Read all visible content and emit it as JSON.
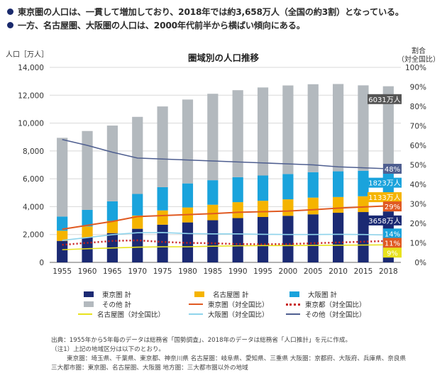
{
  "bullets": [
    "東京圏の人口は、一貫して増加しており、2018年では約3,658万人（全国の約3割）となっている。",
    "一方、名古屋圏、大阪圏の人口は、2000年代前半から横ばい傾向にある。"
  ],
  "colors": {
    "tokyo": "#1b2a73",
    "nagoya": "#f5b400",
    "osaka": "#1aa3dc",
    "other": "#b3b9be",
    "tokyo_ratio": "#e05a22",
    "tokyo_metro_ratio": "#c8201e",
    "nagoya_ratio": "#e8e21c",
    "osaka_ratio": "#8fd4ec",
    "other_ratio": "#4f5f90"
  },
  "chart_data": {
    "type": "bar",
    "title": "圏域別の人口推移",
    "ylabel_left": "人口［万人］",
    "ylabel_right_line1": "割合",
    "ylabel_right_line2": "（対全国比）",
    "ylim_left": [
      0,
      14000
    ],
    "ylim_right": [
      0,
      100
    ],
    "yticks_left": [
      "0",
      "2,000",
      "4,000",
      "6,000",
      "8,000",
      "10,000",
      "12,000",
      "14,000"
    ],
    "yticks_right": [
      "0%",
      "10%",
      "20%",
      "30%",
      "40%",
      "50%",
      "60%",
      "70%",
      "80%",
      "90%",
      "100%"
    ],
    "categories": [
      "1955",
      "1960",
      "1965",
      "1970",
      "1975",
      "1980",
      "1985",
      "1990",
      "1995",
      "2000",
      "2005",
      "2010",
      "2015",
      "2018"
    ],
    "stacked_series": [
      {
        "name": "東京圏 計",
        "values": [
          1542,
          1786,
          2102,
          2411,
          2704,
          2870,
          3027,
          3180,
          3258,
          3342,
          3448,
          3562,
          3613,
          3658
        ]
      },
      {
        "name": "名古屋圏 計",
        "values": [
          731,
          794,
          876,
          952,
          1025,
          1071,
          1112,
          1143,
          1163,
          1184,
          1202,
          1130,
          1132,
          1133
        ]
      },
      {
        "name": "大阪圏 計",
        "values": [
          1016,
          1190,
          1404,
          1551,
          1670,
          1728,
          1760,
          1797,
          1815,
          1819,
          1826,
          1846,
          1832,
          1823
        ]
      },
      {
        "name": "その他 計",
        "values": [
          5653,
          5661,
          5440,
          5533,
          5795,
          6022,
          6205,
          6241,
          6321,
          6357,
          6314,
          6268,
          6132,
          6031
        ]
      }
    ],
    "line_series": [
      {
        "name": "東京圏（対全国比）",
        "values": [
          17,
          19,
          21,
          23.5,
          24,
          24.5,
          25,
          25.7,
          26,
          26.3,
          27,
          27.8,
          28.4,
          29
        ]
      },
      {
        "name": "東京都（対全国比）",
        "values": [
          9,
          10,
          11,
          11.3,
          10.5,
          10,
          9.8,
          9.4,
          9.3,
          9.4,
          9.8,
          10.2,
          10.6,
          11
        ]
      },
      {
        "name": "名古屋圏（対全国比）",
        "values": [
          6.5,
          7,
          7.4,
          7.8,
          8,
          8,
          8.3,
          8.5,
          8.6,
          8.6,
          8.7,
          8.8,
          8.9,
          9
        ]
      },
      {
        "name": "大阪圏（対全国比）",
        "values": [
          11.3,
          12.7,
          14.2,
          15.2,
          15.3,
          14.8,
          14.6,
          14.6,
          14.4,
          14.3,
          14.3,
          14.4,
          14.3,
          14
        ]
      },
      {
        "name": "その他（対全国比）",
        "values": [
          63,
          60,
          56.5,
          53.5,
          53,
          52.5,
          52,
          51.5,
          51,
          50.5,
          50,
          49,
          48.5,
          48
        ]
      }
    ],
    "end_labels": {
      "other_total": "6031万人",
      "other_pct": "48%",
      "osaka_total": "1823万人",
      "nagoya_total": "1133万人",
      "tokyo_pct": "29%",
      "tokyo_total": "3658万人",
      "osaka_pct": "14%",
      "tokyo_metro_pct": "11%",
      "nagoya_pct": "9%"
    }
  },
  "legend": {
    "tokyo_total": "東京圏 計",
    "nagoya_total": "名古屋圏 計",
    "osaka_total": "大阪圏 計",
    "other_total": "その他 計",
    "tokyo_ratio": "東京圏（対全国比）",
    "tokyo_metro_ratio": "東京都（対全国比）",
    "nagoya_ratio": "名古屋圏（対全国比）",
    "osaka_ratio": "大阪圏（対全国比）",
    "other_ratio": "その他（対全国比）"
  },
  "notes": [
    "出典：1955年から5年毎のデータは総務省「国勢調査」、2018年のデータは総務省「人口推計」を元に作成。",
    "（注1）上記の地域区分は以下のとおり。",
    "東京圏：埼玉県、千葉県、東京都、神奈川県 名古屋圏：岐阜県、愛知県、三重県 大阪圏：京都府、大阪府、兵庫県、奈良県",
    "三大都市圏：東京圏、名古屋圏、大阪圏 地方圏：三大都市圏以外の地域"
  ]
}
